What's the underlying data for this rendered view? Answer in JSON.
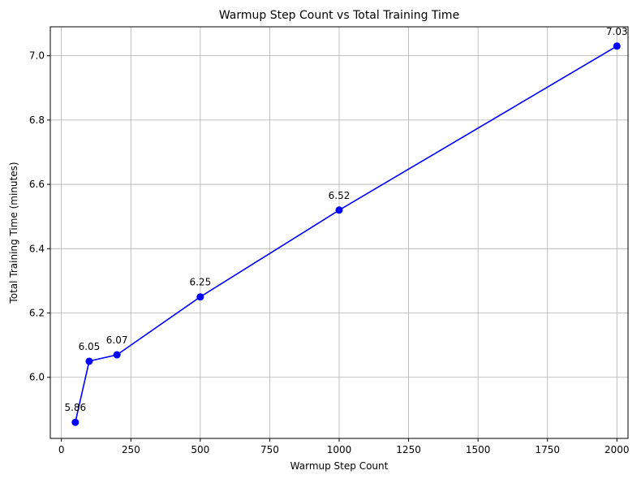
{
  "chart_data": {
    "type": "line",
    "title": "Warmup Step Count vs Total Training Time",
    "xlabel": "Warmup Step Count",
    "ylabel": "Total Training Time (minutes)",
    "xlim": [
      -40,
      2040
    ],
    "ylim": [
      5.81,
      7.09
    ],
    "xticks": [
      0,
      250,
      500,
      750,
      1000,
      1250,
      1500,
      1750,
      2000
    ],
    "xtick_labels": [
      "0",
      "250",
      "500",
      "750",
      "1000",
      "1250",
      "1500",
      "1750",
      "2000"
    ],
    "yticks": [
      6.0,
      6.2,
      6.4,
      6.6,
      6.8,
      7.0
    ],
    "ytick_labels": [
      "6.0",
      "6.2",
      "6.4",
      "6.6",
      "6.8",
      "7.0"
    ],
    "grid": true,
    "series": [
      {
        "color": "#0000ff",
        "marker": "circle",
        "x": [
          50,
          100,
          200,
          500,
          1000,
          2000
        ],
        "y": [
          5.86,
          6.05,
          6.07,
          6.25,
          6.52,
          7.03
        ],
        "labels": [
          "5.86",
          "6.05",
          "6.07",
          "6.25",
          "6.52",
          "7.03"
        ]
      }
    ]
  }
}
